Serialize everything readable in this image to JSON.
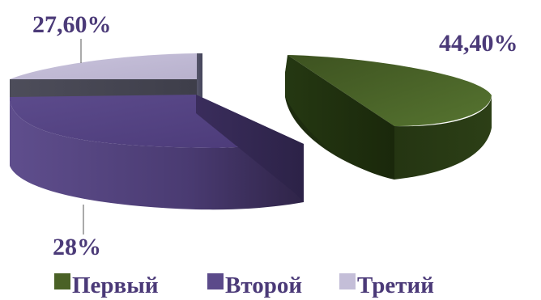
{
  "chart_data": {
    "type": "pie",
    "style": "3d-exploded",
    "categories": [
      "Первый",
      "Второй",
      "Третий"
    ],
    "values": [
      44.4,
      28,
      27.6
    ],
    "data_labels": [
      "44,40%",
      "28%",
      "27,60%"
    ],
    "colors": [
      "#4a6126",
      "#5b4a8a",
      "#c4bed8"
    ],
    "legend": {
      "position": "bottom"
    }
  }
}
